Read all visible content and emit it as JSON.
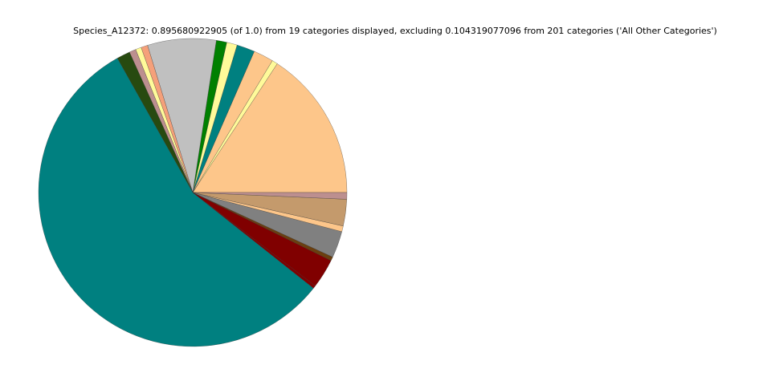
{
  "chart_data": {
    "type": "pie",
    "title": "Species_A12372: 0.895680922905 (of 1.0) from 19 categories displayed, excluding 0.104319077096 from 201 categories ('All Other Categories')",
    "values": [
      15.8,
      0.6,
      2.1,
      1.9,
      1.1,
      1.1,
      7.2,
      0.7,
      0.6,
      0.7,
      1.4,
      56.3,
      0.3,
      3.1,
      0.4,
      2.8,
      0.6,
      2.8,
      0.7
    ],
    "colors": [
      "#fdc68a",
      "#fffa9a",
      "#fdc68a",
      "#008080",
      "#fffa9a",
      "#008000",
      "#c0c0c0",
      "#f5a07a",
      "#fffa9a",
      "#bc8f8f",
      "#274a10",
      "#008080",
      "#800000",
      "#800000",
      "#6b3f0f",
      "#808080",
      "#fdc68a",
      "#c49a6c",
      "#bc8f8f"
    ]
  }
}
